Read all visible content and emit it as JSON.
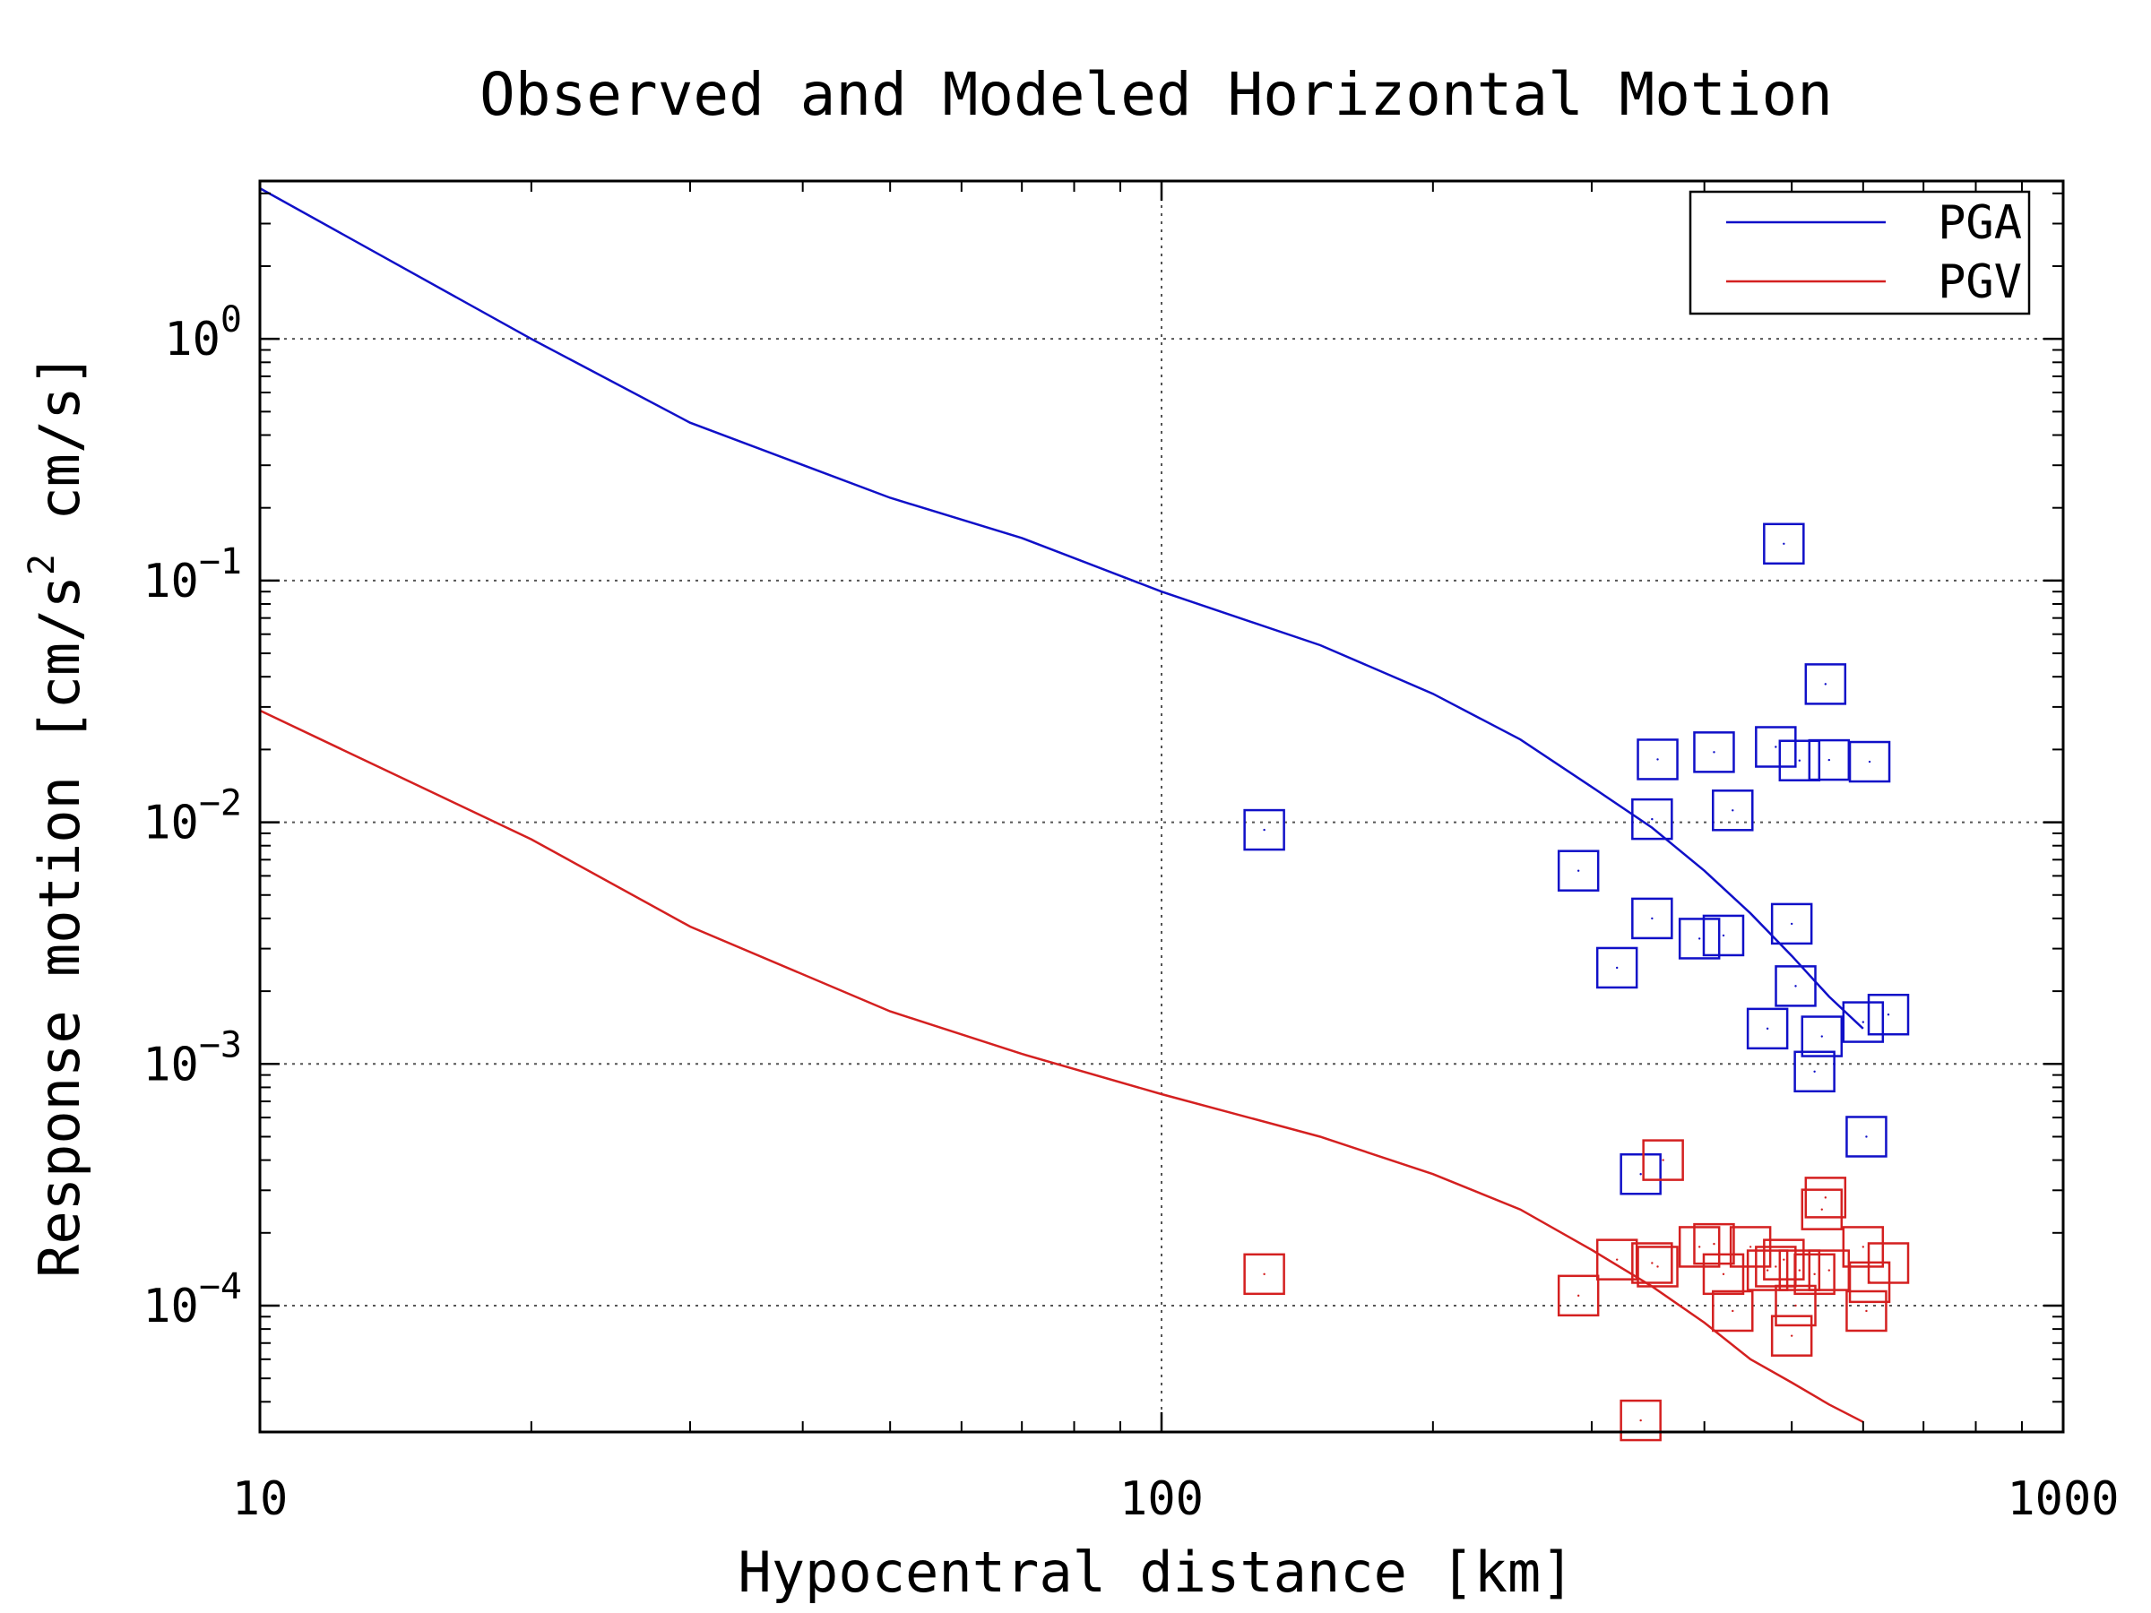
{
  "chart_data": {
    "type": "scatter",
    "title": "Observed and Modeled Horizontal Motion",
    "xlabel": "Hypocentral distance [km]",
    "ylabel": "Response motion [cm/s²  cm/s]",
    "ylabel_parts": {
      "before_sup": "Response motion [cm/s",
      "sup": "2",
      "after_sup": " cm/s]"
    },
    "x_scale": "log",
    "y_scale": "log",
    "xlim": [
      10,
      1000
    ],
    "ylim": [
      3e-05,
      4.5
    ],
    "x_ticks": [
      {
        "value": 10,
        "label": "10"
      },
      {
        "value": 100,
        "label": "100"
      },
      {
        "value": 1000,
        "label": "1000"
      }
    ],
    "y_ticks": [
      {
        "value": 1,
        "base": "10",
        "exp": "0"
      },
      {
        "value": 0.1,
        "base": "10",
        "exp": "−1"
      },
      {
        "value": 0.01,
        "base": "10",
        "exp": "−2"
      },
      {
        "value": 0.001,
        "base": "10",
        "exp": "−3"
      },
      {
        "value": 0.0001,
        "base": "10",
        "exp": "−4"
      }
    ],
    "grid": true,
    "legend": {
      "position": "top-right",
      "entries": [
        "PGA",
        "PGV"
      ]
    },
    "colors": {
      "PGA": "#1010c8",
      "PGV": "#d42020",
      "grid": "#555555"
    },
    "series": [
      {
        "name": "PGA",
        "kind": "line",
        "x": [
          10,
          20,
          30,
          50,
          70,
          100,
          150,
          200,
          250,
          300,
          350,
          400,
          450,
          500,
          550,
          600
        ],
        "y": [
          4.2,
          1.0,
          0.45,
          0.22,
          0.15,
          0.09,
          0.054,
          0.034,
          0.022,
          0.014,
          0.0095,
          0.0063,
          0.0042,
          0.0028,
          0.0019,
          0.0014
        ]
      },
      {
        "name": "PGV",
        "kind": "line",
        "x": [
          10,
          20,
          30,
          50,
          70,
          100,
          150,
          200,
          250,
          300,
          350,
          400,
          450,
          500,
          550,
          600
        ],
        "y": [
          0.029,
          0.0085,
          0.0037,
          0.00165,
          0.0011,
          0.00075,
          0.0005,
          0.00035,
          0.00025,
          0.00017,
          0.00012,
          8.5e-05,
          6e-05,
          4.8e-05,
          3.9e-05,
          3.3e-05
        ]
      },
      {
        "name": "PGA",
        "kind": "markers",
        "x": [
          130,
          290,
          320,
          340,
          350,
          350,
          355,
          395,
          410,
          420,
          430,
          470,
          480,
          490,
          500,
          505,
          510,
          530,
          540,
          545,
          550,
          600,
          605,
          610,
          640
        ],
        "y": [
          0.0093,
          0.0063,
          0.0025,
          0.00035,
          0.0103,
          0.004,
          0.0182,
          0.0033,
          0.0195,
          0.0034,
          0.0112,
          0.0014,
          0.0205,
          0.142,
          0.0038,
          0.0021,
          0.018,
          0.00093,
          0.0013,
          0.0373,
          0.0181,
          0.00149,
          0.0005,
          0.0178,
          0.0016
        ]
      },
      {
        "name": "PGV",
        "kind": "markers",
        "x": [
          130,
          290,
          320,
          340,
          350,
          355,
          360,
          395,
          410,
          420,
          430,
          450,
          470,
          480,
          490,
          500,
          505,
          510,
          530,
          540,
          545,
          550,
          600,
          605,
          610,
          640
        ],
        "y": [
          0.000135,
          0.00011,
          0.000155,
          3.35e-05,
          0.00015,
          0.000145,
          0.0004,
          0.000175,
          0.00018,
          0.000135,
          9.5e-05,
          0.000175,
          0.00014,
          0.000145,
          0.000155,
          7.5e-05,
          0.0001,
          0.00014,
          0.000135,
          0.00025,
          0.00028,
          0.00014,
          0.000175,
          9.5e-05,
          0.000125,
          0.00015
        ]
      }
    ]
  }
}
